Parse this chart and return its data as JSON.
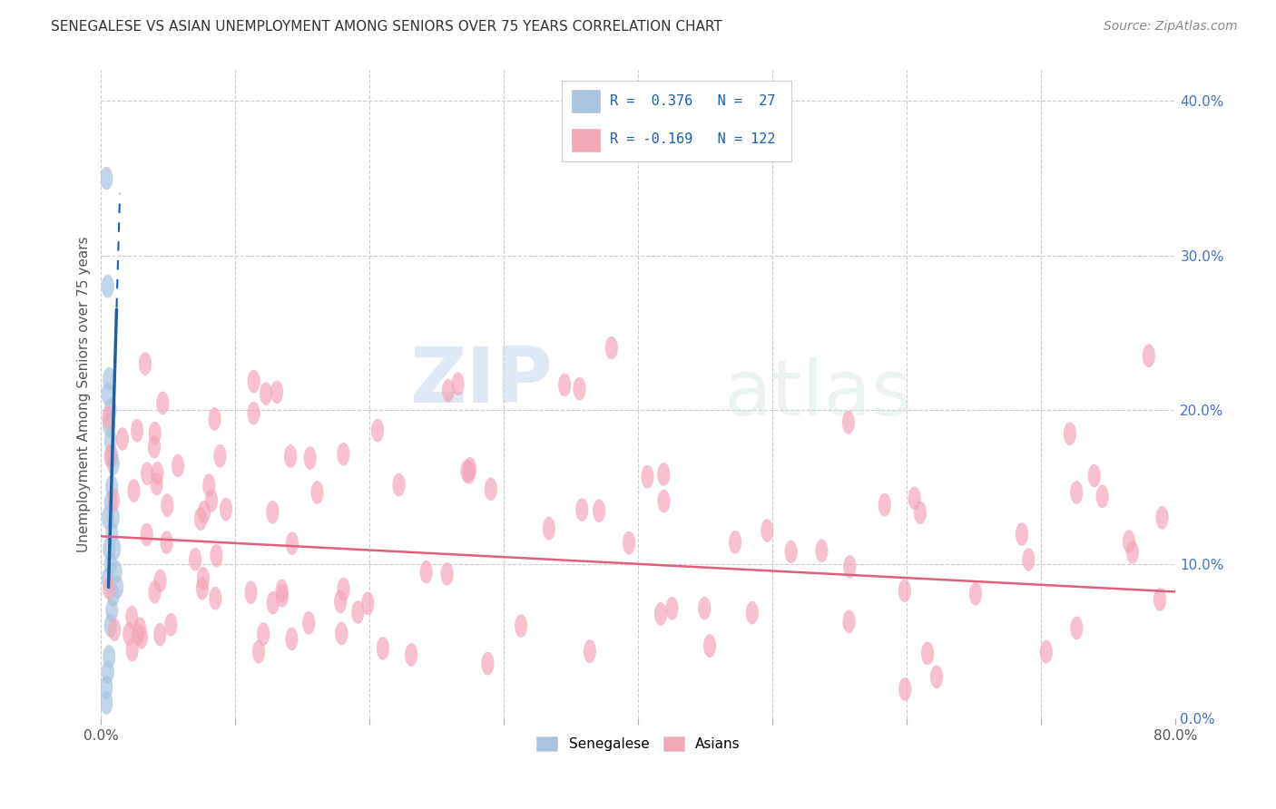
{
  "title": "SENEGALESE VS ASIAN UNEMPLOYMENT AMONG SENIORS OVER 75 YEARS CORRELATION CHART",
  "source": "Source: ZipAtlas.com",
  "ylabel": "Unemployment Among Seniors over 75 years",
  "xlim": [
    0.0,
    0.8
  ],
  "ylim": [
    0.0,
    0.42
  ],
  "xticks": [
    0.0,
    0.1,
    0.2,
    0.3,
    0.4,
    0.5,
    0.6,
    0.7,
    0.8
  ],
  "yticks": [
    0.0,
    0.1,
    0.2,
    0.3,
    0.4
  ],
  "background_color": "#ffffff",
  "watermark_zip": "ZIP",
  "watermark_atlas": "atlas",
  "senegalese_color": "#a8c4e0",
  "asian_color": "#f4a7b9",
  "senegalese_R": 0.376,
  "senegalese_N": 27,
  "asian_R": -0.169,
  "asian_N": 122,
  "senegalese_line_color": "#2060a0",
  "asian_line_color": "#e06080",
  "legend_R_color": "#1a5fa8",
  "title_fontsize": 11,
  "source_fontsize": 10,
  "tick_fontsize": 11,
  "ylabel_fontsize": 11
}
